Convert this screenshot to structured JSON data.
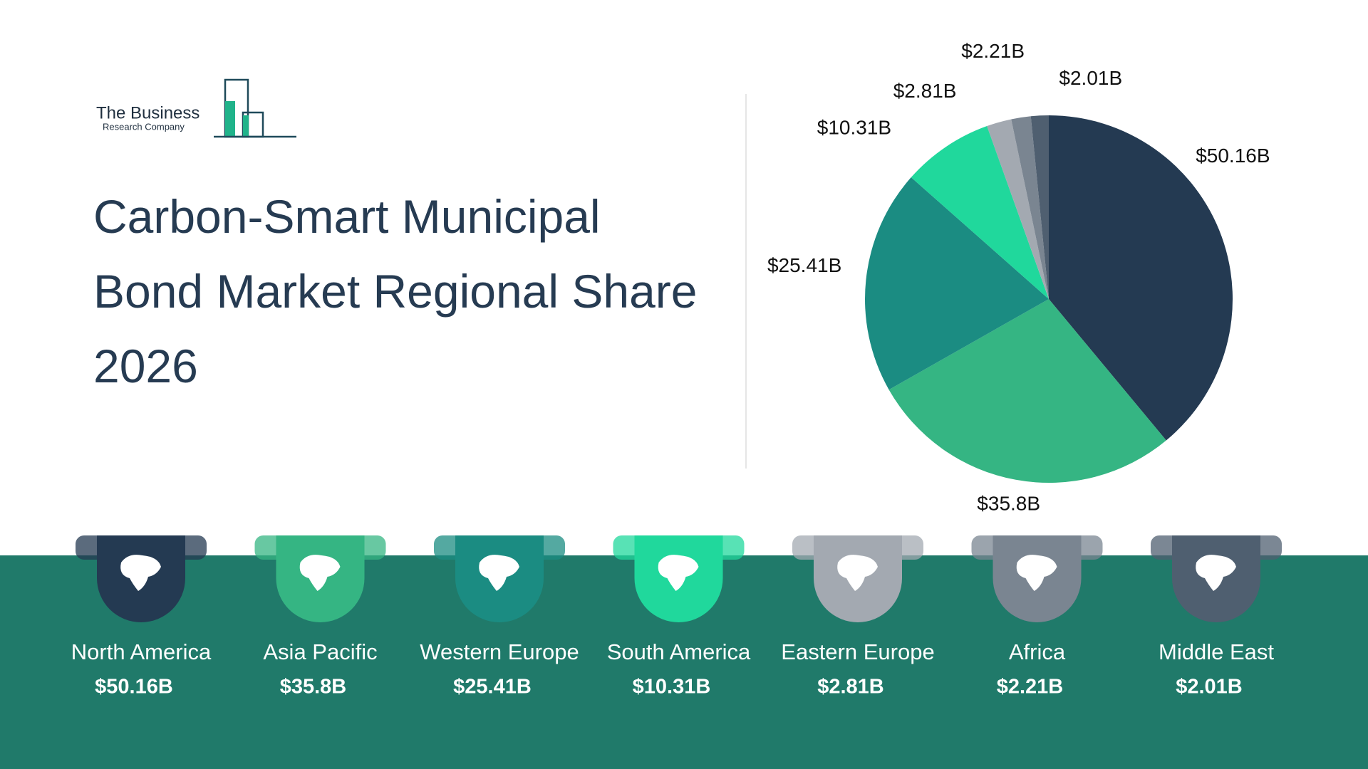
{
  "logo": {
    "line1": "The Business",
    "line2": "Research Company"
  },
  "chart_data": {
    "type": "pie",
    "title": "Carbon-Smart Municipal Bond Market Regional Share 2026",
    "categories": [
      "North America",
      "Asia Pacific",
      "Western Europe",
      "South America",
      "Eastern Europe",
      "Africa",
      "Middle East"
    ],
    "values": [
      50.16,
      35.8,
      25.41,
      10.31,
      2.81,
      2.21,
      2.01
    ],
    "value_labels": [
      "$50.16B",
      "$35.8B",
      "$25.41B",
      "$10.31B",
      "$2.81B",
      "$2.21B",
      "$2.01B"
    ],
    "colors": [
      "#243a52",
      "#35b583",
      "#1b8c82",
      "#20d89c",
      "#a3a9b1",
      "#7a8591",
      "#4f5f70"
    ]
  }
}
